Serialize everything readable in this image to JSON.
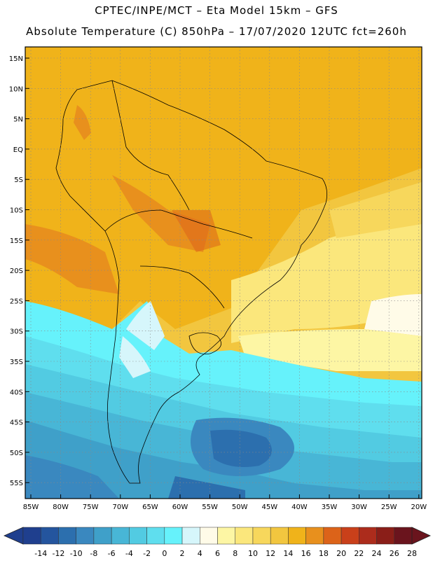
{
  "header": {
    "line1": "CPTEC/INPE/MCT –  Eta Model 15km – GFS",
    "line2": "Absolute Temperature (C) 850hPa – 17/07/2020 12UTC fct=260h"
  },
  "map": {
    "lat_labels": [
      "15N",
      "10N",
      "5N",
      "EQ",
      "5S",
      "10S",
      "15S",
      "20S",
      "25S",
      "30S",
      "35S",
      "40S",
      "45S",
      "50S",
      "55S"
    ],
    "lon_labels": [
      "85W",
      "80W",
      "75W",
      "70W",
      "65W",
      "60W",
      "55W",
      "50W",
      "45W",
      "40W",
      "35W",
      "30W",
      "25W",
      "20W"
    ]
  },
  "colorbar": {
    "labels": [
      "-14",
      "-12",
      "-10",
      "-8",
      "-6",
      "-4",
      "-2",
      "0",
      "2",
      "4",
      "6",
      "8",
      "10",
      "12",
      "14",
      "16",
      "18",
      "20",
      "22",
      "24",
      "26",
      "28"
    ],
    "colors": [
      "#1f3f8e",
      "#24559e",
      "#2c6fae",
      "#3a88bf",
      "#3fa0c9",
      "#48b6d6",
      "#52cbe2",
      "#5fdeee",
      "#66f2fb",
      "#d6f6fb",
      "#fffbe8",
      "#fdf6a4",
      "#fbe77c",
      "#f7d75c",
      "#f2c63f",
      "#f0b31a",
      "#e8901d",
      "#dc6319",
      "#c9401a",
      "#ac2c1c",
      "#8a1e18",
      "#6a141d"
    ]
  },
  "colors": {
    "warm": "#f0b31a",
    "hot": "#e8901d",
    "cold_sea": "#48b6d6",
    "deep": "#2c6fae"
  }
}
